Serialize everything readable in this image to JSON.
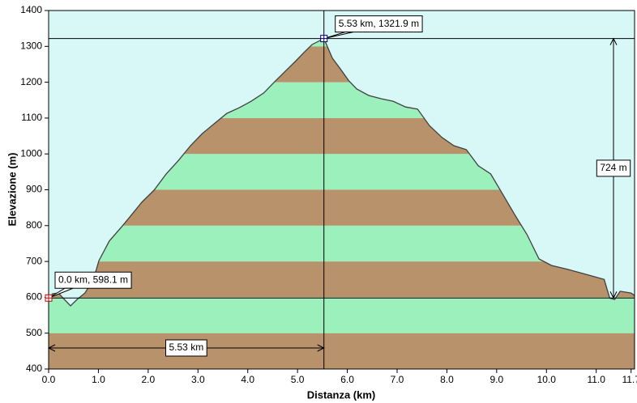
{
  "chart_data": {
    "type": "area",
    "x_label": "Distanza  (km)",
    "y_label": "Elevazione (m)",
    "x": [
      0,
      0.08,
      0.2,
      0.29,
      0.44,
      0.57,
      0.73,
      0.9,
      1.01,
      1.22,
      1.47,
      1.63,
      1.87,
      2.12,
      2.36,
      2.61,
      2.85,
      3.09,
      3.34,
      3.58,
      3.83,
      4.07,
      4.32,
      4.56,
      4.8,
      4.97,
      5.13,
      5.29,
      5.53,
      5.7,
      5.86,
      6.03,
      6.19,
      6.43,
      6.68,
      6.92,
      7.17,
      7.41,
      7.65,
      7.9,
      8.14,
      8.39,
      8.63,
      8.88,
      9.12,
      9.36,
      9.61,
      9.85,
      10.1,
      10.42,
      10.75,
      11.16,
      11.27,
      11.37,
      11.48,
      11.7,
      11.77
    ],
    "values": [
      598.1,
      610,
      612,
      598,
      576,
      594,
      612,
      650,
      702,
      757,
      797,
      824,
      865,
      899,
      944,
      982,
      1023,
      1057,
      1086,
      1113,
      1129,
      1147,
      1170,
      1204,
      1237,
      1260,
      1283,
      1305,
      1321.9,
      1267,
      1237,
      1204,
      1181,
      1163,
      1154,
      1147,
      1131,
      1125,
      1079,
      1046,
      1023,
      1012,
      967,
      944,
      888,
      831,
      775,
      707,
      689,
      678,
      666,
      650,
      598,
      594,
      617,
      612,
      605
    ],
    "line_color": "#404040",
    "band_colors": [
      "#b8926a",
      "#9cf0bc"
    ],
    "background": "#d8f8f8",
    "xlim": [
      0,
      11.77
    ],
    "xticks": [
      {
        "value": 0,
        "label": "0.0"
      },
      {
        "value": 1,
        "label": "1.0"
      },
      {
        "value": 2,
        "label": "2.0"
      },
      {
        "value": 3,
        "label": "3.0"
      },
      {
        "value": 4,
        "label": "4.0"
      },
      {
        "value": 5,
        "label": "5.0"
      },
      {
        "value": 6,
        "label": "6.0"
      },
      {
        "value": 7,
        "label": "7.0"
      },
      {
        "value": 8,
        "label": "8.0"
      },
      {
        "value": 9,
        "label": "9.0"
      },
      {
        "value": 10,
        "label": "10.0"
      },
      {
        "value": 11,
        "label": "11.0"
      },
      {
        "value": 11.7,
        "label": "11.7"
      }
    ],
    "ylim": [
      400,
      1400
    ],
    "yticks": [
      400,
      500,
      600,
      700,
      800,
      900,
      1000,
      1100,
      1200,
      1300,
      1400
    ],
    "markers": [
      {
        "x": 0,
        "y": 598.1,
        "label": "0.0 km, 598.1 m",
        "color": "#cc0000"
      },
      {
        "x": 5.53,
        "y": 1321.9,
        "label": "5.53 km, 1321.9 m",
        "color": "#000080"
      }
    ],
    "elevation_difference": {
      "value": 724,
      "label": "724 m"
    },
    "distance_difference": {
      "value": 5.53,
      "label": "5.53 km"
    }
  }
}
